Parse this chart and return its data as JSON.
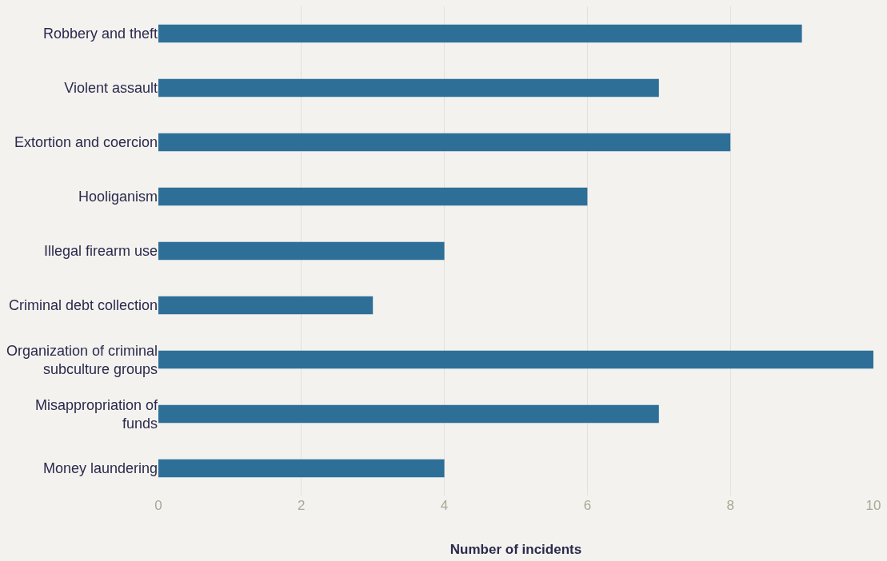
{
  "chart_data": {
    "type": "bar",
    "orientation": "horizontal",
    "xlabel": "Number of incidents",
    "categories": [
      "Robbery and theft",
      "Violent assault",
      "Extortion and coercion",
      "Hooliganism",
      "Illegal firearm use",
      "Criminal debt collection",
      "Organization of criminal subculture groups",
      "Misappropriation of funds",
      "Money laundering"
    ],
    "values": [
      9,
      7,
      8,
      6,
      4,
      3,
      10,
      7,
      4
    ],
    "color": "#2e6f98",
    "xlim": [
      0,
      10
    ],
    "xticks": [
      0,
      2,
      4,
      6,
      8,
      10
    ],
    "grid": "x"
  }
}
